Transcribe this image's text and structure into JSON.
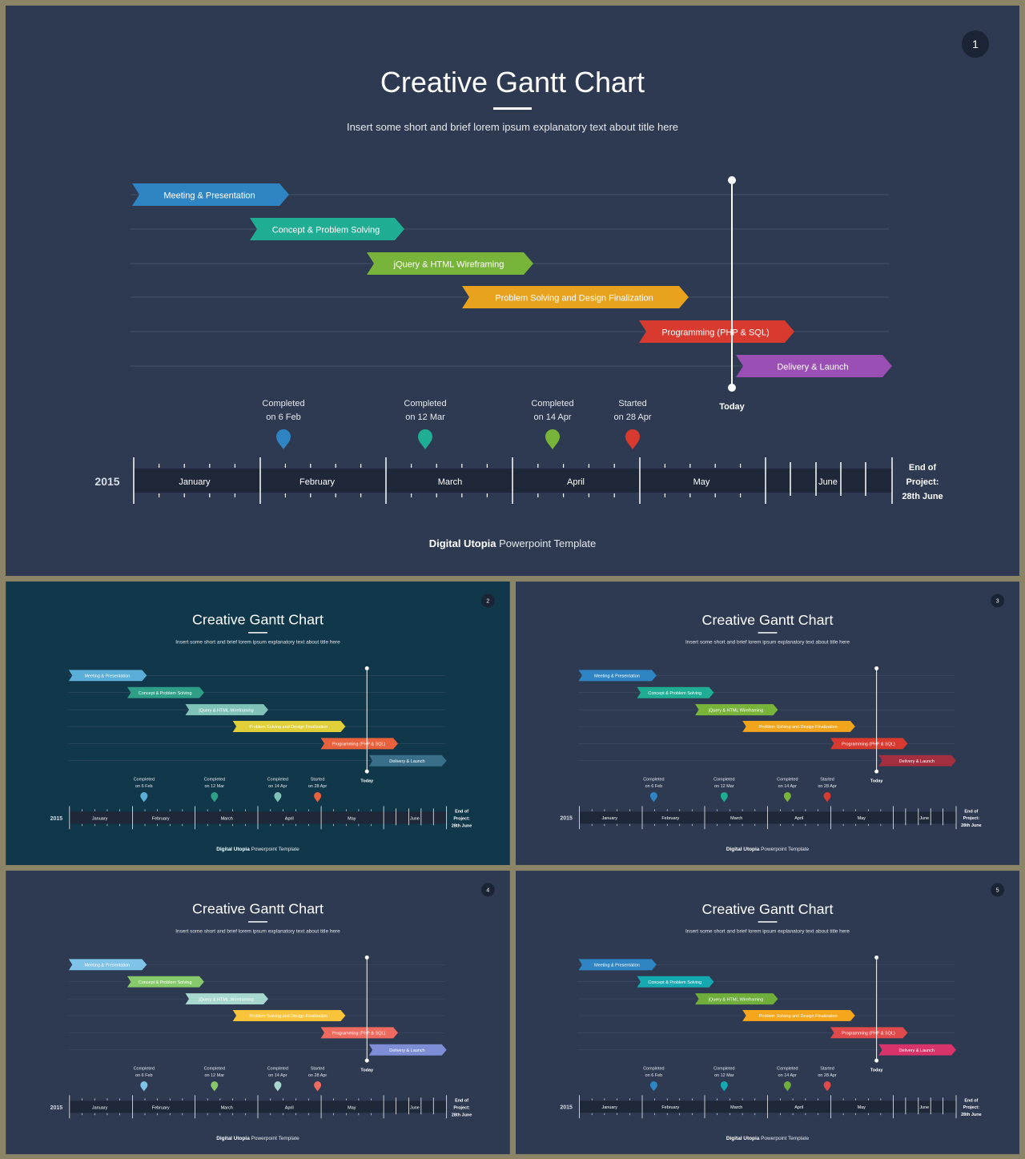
{
  "common": {
    "title": "Creative Gantt Chart",
    "subtitle": "Insert some short and brief lorem ipsum explanatory text about title here",
    "footer_bold": "Digital Utopia",
    "footer_rest": " Powerpoint Template",
    "year": "2015",
    "end_label": [
      "End of",
      "Project:",
      "28th June"
    ],
    "today_label": "Today",
    "months": [
      "January",
      "February",
      "March",
      "April",
      "May",
      "June"
    ],
    "tasks": [
      "Meeting & Presentation",
      "Concept & Problem Solving",
      "jQuery & HTML Wireframing",
      "Problem Solving and Design Finalization",
      "Programming (PHP & SQL)",
      "Delivery & Launch"
    ],
    "milestones": [
      [
        "Completed",
        "on 6 Feb"
      ],
      [
        "Completed",
        "on 12 Mar"
      ],
      [
        "Completed",
        "on 14 Apr"
      ],
      [
        "Started",
        "on 28 Apr"
      ]
    ]
  },
  "slides": [
    {
      "number": "1",
      "background": "#2d3a51",
      "task_colors": [
        "#2f85c4",
        "#1fae93",
        "#79b43a",
        "#e8a21d",
        "#d83a2f",
        "#9a4fb5"
      ],
      "pin_colors": [
        "#2f85c4",
        "#1fae93",
        "#79b43a",
        "#d83a2f"
      ]
    },
    {
      "number": "2",
      "background": "#10384a",
      "task_colors": [
        "#5aaed8",
        "#2f9f87",
        "#7fc3b8",
        "#e1cf3a",
        "#e8613d",
        "#3a6f8a"
      ],
      "pin_colors": [
        "#5aaed8",
        "#2f9f87",
        "#7fc3b8",
        "#e8613d"
      ]
    },
    {
      "number": "3",
      "background": "#2d3a51",
      "task_colors": [
        "#2f85c4",
        "#1fae93",
        "#79b43a",
        "#f0a51c",
        "#d83a2f",
        "#a32f40"
      ],
      "pin_colors": [
        "#2f85c4",
        "#1fae93",
        "#79b43a",
        "#d83a2f"
      ]
    },
    {
      "number": "4",
      "background": "#2d3a51",
      "task_colors": [
        "#7fc3e8",
        "#86c96a",
        "#a6d8cf",
        "#f7c43a",
        "#ef6a5e",
        "#7d8ed6"
      ],
      "pin_colors": [
        "#7fc3e8",
        "#86c96a",
        "#a6d8cf",
        "#ef6a5e"
      ]
    },
    {
      "number": "5",
      "background": "#2d3a51",
      "task_colors": [
        "#2f85c4",
        "#16a8b0",
        "#6fae3a",
        "#f5a61a",
        "#e04a4a",
        "#d8336a"
      ],
      "pin_colors": [
        "#2f85c4",
        "#16a8b0",
        "#6fae3a",
        "#e04a4a"
      ]
    }
  ]
}
